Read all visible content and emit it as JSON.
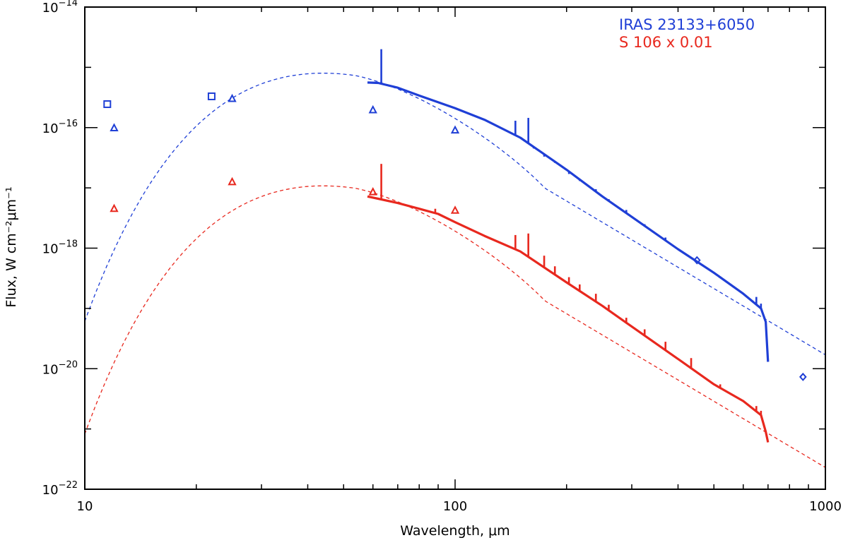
{
  "chart_data": {
    "type": "line",
    "xscale": "log",
    "yscale": "log",
    "xlim": [
      10,
      1000
    ],
    "ylim": [
      1e-22,
      1e-14
    ],
    "xlabel": "Wavelength, μm",
    "ylabel": "Flux, W cm⁻²μm⁻¹",
    "x_tick_labels": [
      {
        "value": 10,
        "label": "10"
      },
      {
        "value": 100,
        "label": "100"
      },
      {
        "value": 1000,
        "label": "1000"
      }
    ],
    "y_tick_labels": [
      {
        "value": 1e-14,
        "mant": "10",
        "exp": "−14"
      },
      {
        "value": 1e-16,
        "mant": "10",
        "exp": "−16"
      },
      {
        "value": 1e-18,
        "mant": "10",
        "exp": "−18"
      },
      {
        "value": 1e-20,
        "mant": "10",
        "exp": "−20"
      },
      {
        "value": 1e-22,
        "mant": "10",
        "exp": "−22"
      }
    ],
    "legend_position": "top-right",
    "series": [
      {
        "name": "IRAS 23133+6050",
        "color": "#1f3fd6",
        "model": {
          "peak_wavelength": 44,
          "peak_flux": 8e-16,
          "power_law_index": -3.65
        },
        "spectrum": {
          "continuum": [
            [
              58,
              5.6e-16
            ],
            [
              62,
              5.5e-16
            ],
            [
              70,
              4.6e-16
            ],
            [
              80,
              3.4e-16
            ],
            [
              100,
              2.1e-16
            ],
            [
              120,
              1.35e-16
            ],
            [
              150,
              6.8e-17
            ],
            [
              200,
              2e-17
            ],
            [
              250,
              7.2e-18
            ],
            [
              300,
              3.3e-18
            ],
            [
              400,
              9.6e-19
            ],
            [
              500,
              3.9e-19
            ],
            [
              600,
              1.75e-19
            ],
            [
              670,
              1e-19
            ],
            [
              690,
              6e-20
            ],
            [
              700,
              1.3e-20
            ]
          ],
          "lines": [
            [
              63.2,
              2e-15
            ],
            [
              145.5,
              1.3e-16
            ],
            [
              157.7,
              1.45e-16
            ],
            [
              163,
              4.5e-17
            ],
            [
              174,
              3.3e-17
            ],
            [
              186,
              2.6e-17
            ],
            [
              203,
              1.7e-17
            ],
            [
              217,
              1.3e-17
            ],
            [
              240,
              9.5e-18
            ],
            [
              260,
              6.5e-18
            ],
            [
              290,
              4.3e-18
            ],
            [
              325,
              2.5e-18
            ],
            [
              370,
              1.5e-18
            ],
            [
              434,
              7e-19
            ],
            [
              520,
              3.2e-19
            ],
            [
              651,
              1.55e-19
            ],
            [
              670,
              1.2e-19
            ]
          ]
        },
        "photometry": [
          {
            "marker": "square",
            "x": 11.5,
            "y": 2.45e-16
          },
          {
            "marker": "square",
            "x": 22.0,
            "y": 3.3e-16
          },
          {
            "marker": "triangle",
            "x": 12.0,
            "y": 9.8e-17
          },
          {
            "marker": "triangle",
            "x": 25.0,
            "y": 3e-16
          },
          {
            "marker": "triangle",
            "x": 60.0,
            "y": 1.95e-16
          },
          {
            "marker": "triangle",
            "x": 100.0,
            "y": 9e-17
          },
          {
            "marker": "diamond",
            "x": 450.0,
            "y": 6.3e-19
          },
          {
            "marker": "diamond",
            "x": 870.0,
            "y": 7.3e-21
          }
        ]
      },
      {
        "name": "S 106 x 0.01",
        "color": "#e8281e",
        "model": {
          "peak_wavelength": 44,
          "peak_flux": 1.08e-17,
          "power_law_index": -3.65
        },
        "spectrum": {
          "continuum": [
            [
              58,
              7.2e-18
            ],
            [
              62,
              6.6e-18
            ],
            [
              70,
              5.6e-18
            ],
            [
              80,
              4.5e-18
            ],
            [
              90,
              3.7e-18
            ],
            [
              100,
              2.7e-18
            ],
            [
              120,
              1.6e-18
            ],
            [
              150,
              8.8e-19
            ],
            [
              200,
              2.7e-19
            ],
            [
              250,
              1.1e-19
            ],
            [
              300,
              5e-20
            ],
            [
              400,
              1.45e-20
            ],
            [
              500,
              5.5e-21
            ],
            [
              600,
              2.9e-21
            ],
            [
              670,
              1.7e-21
            ],
            [
              690,
              9e-22
            ],
            [
              700,
              6e-22
            ]
          ],
          "lines": [
            [
              63.2,
              2.5e-17
            ],
            [
              88.4,
              4.5e-18
            ],
            [
              145.5,
              1.65e-18
            ],
            [
              157.7,
              1.75e-18
            ],
            [
              174,
              7.5e-19
            ],
            [
              186,
              5e-19
            ],
            [
              203,
              3.3e-19
            ],
            [
              217,
              2.5e-19
            ],
            [
              240,
              1.75e-19
            ],
            [
              260,
              1.15e-19
            ],
            [
              290,
              7e-20
            ],
            [
              325,
              4.5e-20
            ],
            [
              370,
              2.8e-20
            ],
            [
              434,
              1.5e-20
            ],
            [
              520,
              5.5e-21
            ],
            [
              651,
              2.4e-21
            ],
            [
              670,
              2e-21
            ]
          ]
        },
        "photometry": [
          {
            "marker": "triangle",
            "x": 12.0,
            "y": 4.5e-18
          },
          {
            "marker": "triangle",
            "x": 25.0,
            "y": 1.25e-17
          },
          {
            "marker": "triangle",
            "x": 60.0,
            "y": 8.5e-18
          },
          {
            "marker": "triangle",
            "x": 100.0,
            "y": 4.2e-18
          }
        ]
      }
    ]
  }
}
